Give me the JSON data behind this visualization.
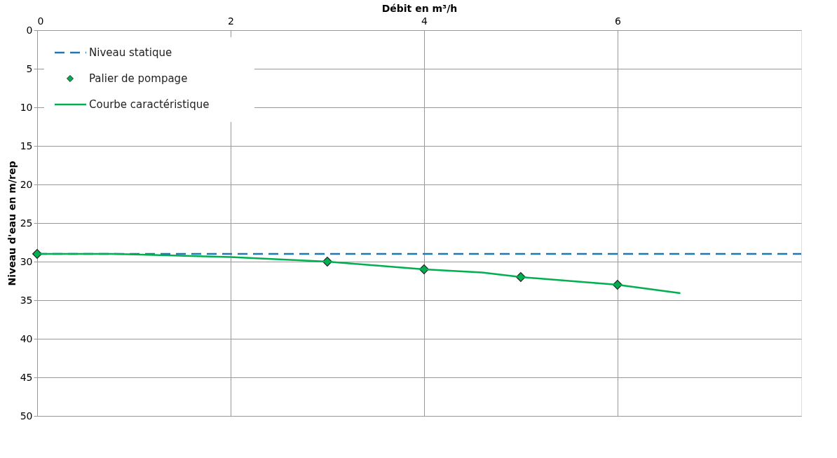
{
  "chart_data": {
    "type": "line",
    "xlabel": "Débit en m³/h",
    "ylabel": "Niveau d'eau en m/rep",
    "xlim": [
      0,
      7.9
    ],
    "xticks": [
      0,
      2,
      4,
      6
    ],
    "ylim": [
      50,
      0
    ],
    "yticks": [
      0,
      5,
      10,
      15,
      20,
      25,
      30,
      35,
      40,
      45,
      50
    ],
    "grid": true,
    "legend": "top left",
    "series": [
      {
        "name": "Niveau statique",
        "line_style": "dashed",
        "color": "#1f77b4",
        "x": [
          0,
          7.9
        ],
        "values": [
          29,
          29
        ]
      },
      {
        "name": "Palier de pompage",
        "type": "scatter",
        "marker": "diamond",
        "color": "#00b050",
        "x": [
          0,
          3,
          4,
          5,
          6
        ],
        "values": [
          29,
          30,
          31,
          32,
          33
        ]
      },
      {
        "name": "Courbe caractéristique",
        "line_style": "solid",
        "color": "#00b050",
        "x": [
          0,
          0.8,
          2,
          3,
          4,
          4.6,
          5,
          6,
          6.65
        ],
        "values": [
          29,
          29,
          29.4,
          30,
          31,
          31.4,
          32,
          33,
          34.1
        ]
      }
    ]
  }
}
